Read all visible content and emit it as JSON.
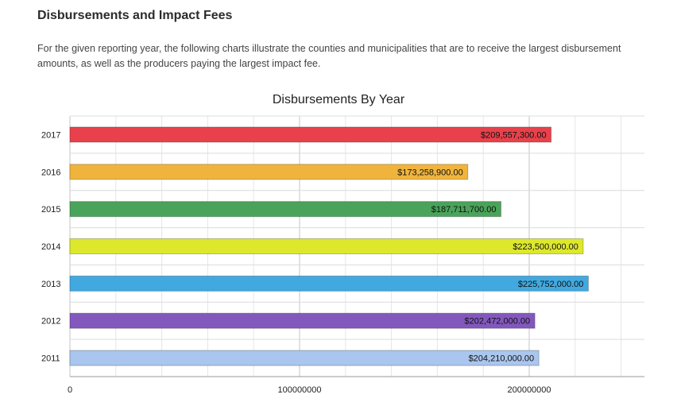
{
  "page": {
    "heading": "Disbursements and Impact Fees",
    "intro": "For the given reporting year, the following charts illustrate the counties and municipalities that are to receive the largest disbursement amounts, as well as the producers paying the largest impact fee."
  },
  "chart_data": {
    "type": "bar",
    "orientation": "horizontal",
    "title": "Disbursements By Year",
    "categories": [
      "2017",
      "2016",
      "2015",
      "2014",
      "2013",
      "2012",
      "2011"
    ],
    "values": [
      209557300,
      173258900,
      187711700,
      223500000,
      225752000,
      202472000,
      204210000
    ],
    "value_labels": [
      "$209,557,300.00",
      "$173,258,900.00",
      "$187,711,700.00",
      "$223,500,000.00",
      "$225,752,000.00",
      "$202,472,000.00",
      "$204,210,000.00"
    ],
    "colors": [
      "#e8414b",
      "#f0b43c",
      "#4aa35a",
      "#dde82c",
      "#41a9df",
      "#8358be",
      "#aac6ee"
    ],
    "xlim": [
      0,
      250000000
    ],
    "x_ticks": [
      0,
      100000000,
      200000000
    ],
    "x_tick_labels": [
      "0",
      "100000000",
      "200000000"
    ],
    "grid": true,
    "xlabel": "",
    "ylabel": ""
  }
}
